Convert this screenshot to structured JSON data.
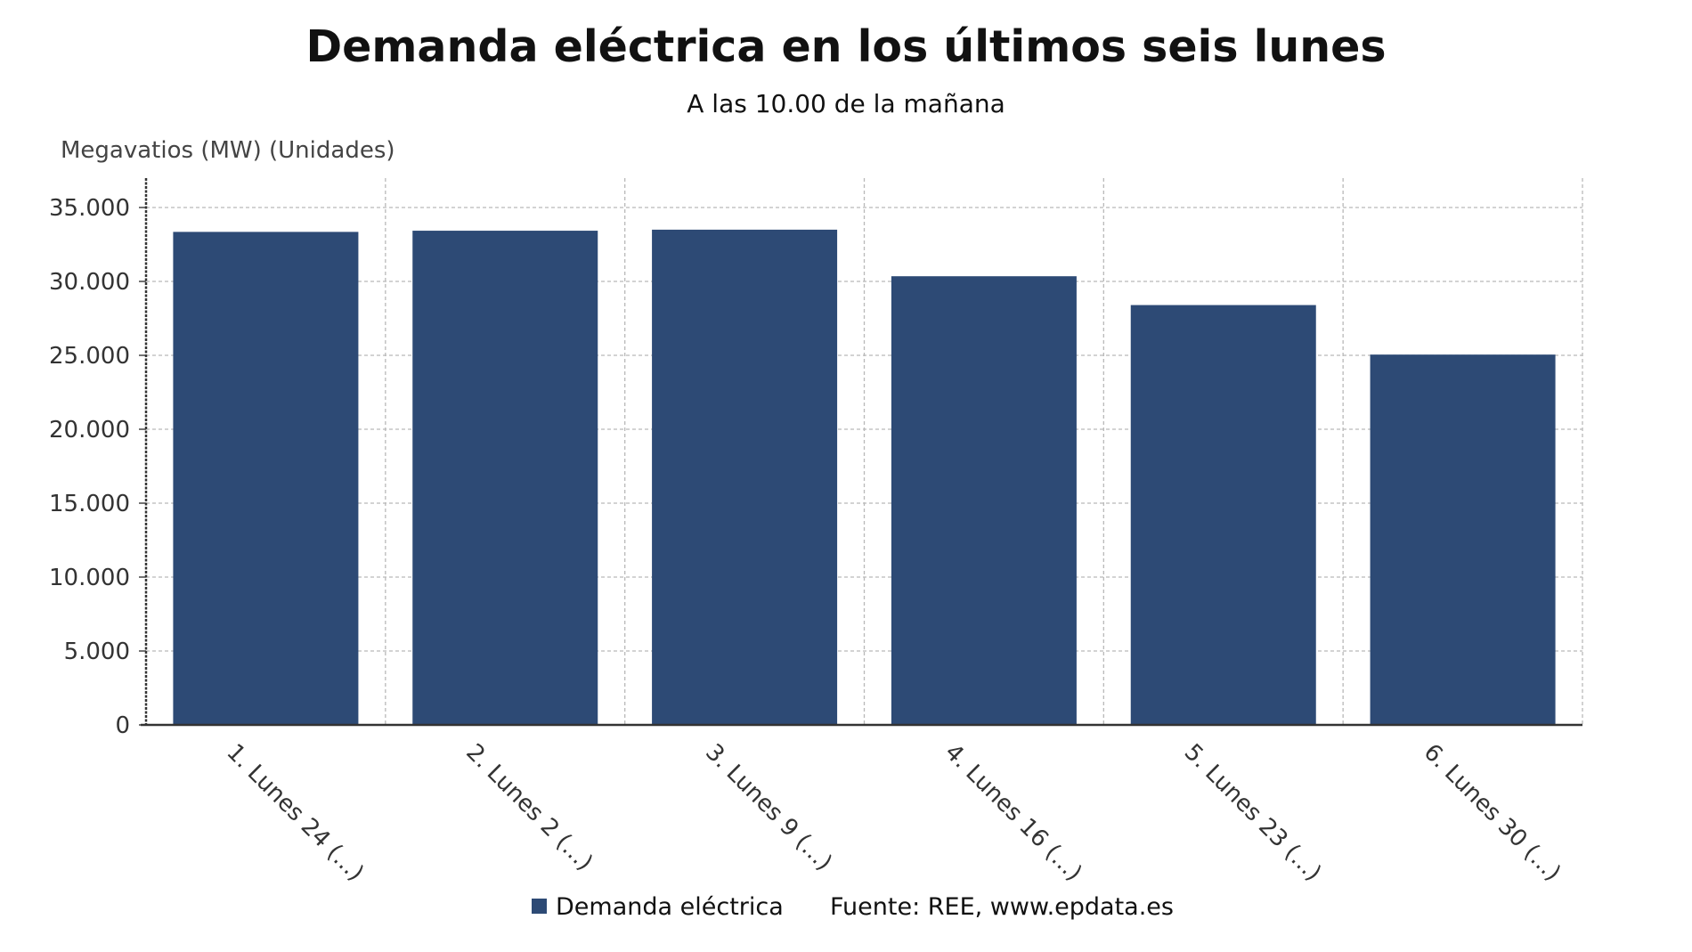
{
  "chart_data": {
    "type": "bar",
    "title": "Demanda eléctrica en los últimos seis lunes",
    "subtitle": "A las 10.00 de la mañana",
    "ylabel": "Megavatios (MW) (Unidades)",
    "xlabel": "",
    "categories": [
      "1. Lunes 24 (...)",
      "2. Lunes 2 (...)",
      "3. Lunes 9 (...)",
      "4. Lunes 16 (...)",
      "5. Lunes 23 (...)",
      "6. Lunes 30 (...)"
    ],
    "series": [
      {
        "name": "Demanda eléctrica",
        "color": "#2d4a75",
        "values": [
          33350,
          33430,
          33500,
          30350,
          28400,
          25050
        ]
      }
    ],
    "ylim": [
      0,
      35000
    ],
    "yticks": [
      0,
      5000,
      10000,
      15000,
      20000,
      25000,
      30000,
      35000
    ],
    "ytick_labels": [
      "0",
      "5.000",
      "10.000",
      "15.000",
      "20.000",
      "25.000",
      "30.000",
      "35.000"
    ],
    "grid": true,
    "legend_position": "bottom",
    "source": "Fuente: REE, www.epdata.es"
  }
}
